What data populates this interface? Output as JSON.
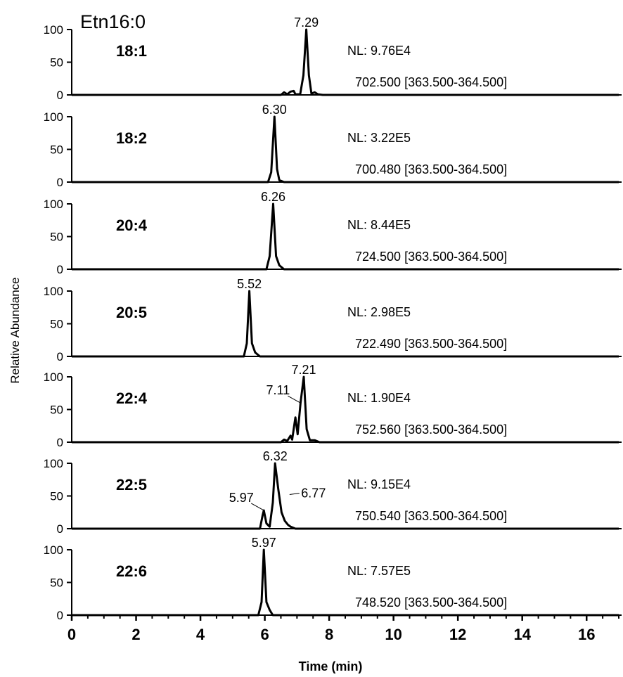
{
  "chart_data": {
    "type": "line",
    "title": "Etn16:0",
    "xlabel": "Time (min)",
    "ylabel": "Relative Abundance",
    "xlim": [
      0,
      17
    ],
    "ylim": [
      0,
      100
    ],
    "x_ticks": [
      "0",
      "2",
      "4",
      "6",
      "8",
      "10",
      "12",
      "14",
      "16"
    ],
    "y_ticks": [
      "0",
      "50",
      "100"
    ],
    "panels": [
      {
        "species": "18:1",
        "nl": "NL: 9.76E4",
        "mz": "702.500 [363.500-364.500]",
        "peaks": [
          {
            "rt": 7.29,
            "label": "7.29"
          }
        ],
        "trace": [
          [
            0,
            0
          ],
          [
            6.5,
            0
          ],
          [
            6.6,
            4
          ],
          [
            6.7,
            1
          ],
          [
            6.8,
            5
          ],
          [
            6.9,
            6
          ],
          [
            6.95,
            1
          ],
          [
            7.1,
            1
          ],
          [
            7.2,
            30
          ],
          [
            7.29,
            100
          ],
          [
            7.37,
            30
          ],
          [
            7.45,
            2
          ],
          [
            7.55,
            4
          ],
          [
            7.65,
            1
          ],
          [
            7.8,
            0
          ],
          [
            17,
            0
          ]
        ]
      },
      {
        "species": "18:2",
        "nl": "NL: 3.22E5",
        "mz": "700.480 [363.500-364.500]",
        "peaks": [
          {
            "rt": 6.3,
            "label": "6.30"
          }
        ],
        "trace": [
          [
            0,
            0
          ],
          [
            6.1,
            0
          ],
          [
            6.2,
            15
          ],
          [
            6.3,
            100
          ],
          [
            6.38,
            20
          ],
          [
            6.45,
            3
          ],
          [
            6.6,
            0
          ],
          [
            17,
            0
          ]
        ]
      },
      {
        "species": "20:4",
        "nl": "NL: 8.44E5",
        "mz": "724.500 [363.500-364.500]",
        "peaks": [
          {
            "rt": 6.26,
            "label": "6.26"
          }
        ],
        "trace": [
          [
            0,
            0
          ],
          [
            6.05,
            0
          ],
          [
            6.15,
            20
          ],
          [
            6.26,
            100
          ],
          [
            6.35,
            20
          ],
          [
            6.45,
            6
          ],
          [
            6.6,
            0
          ],
          [
            17,
            0
          ]
        ]
      },
      {
        "species": "20:5",
        "nl": "NL: 2.98E5",
        "mz": "722.490 [363.500-364.500]",
        "peaks": [
          {
            "rt": 5.52,
            "label": "5.52"
          }
        ],
        "trace": [
          [
            0,
            0
          ],
          [
            5.35,
            0
          ],
          [
            5.44,
            20
          ],
          [
            5.52,
            100
          ],
          [
            5.6,
            20
          ],
          [
            5.7,
            6
          ],
          [
            5.85,
            0
          ],
          [
            17,
            0
          ]
        ]
      },
      {
        "species": "22:4",
        "nl": "NL: 1.90E4",
        "mz": "752.560 [363.500-364.500]",
        "peaks": [
          {
            "rt": 7.21,
            "label": "7.21"
          },
          {
            "rt": 7.11,
            "label": "7.11"
          }
        ],
        "trace": [
          [
            0,
            0
          ],
          [
            6.5,
            0
          ],
          [
            6.6,
            4
          ],
          [
            6.7,
            2
          ],
          [
            6.8,
            10
          ],
          [
            6.85,
            4
          ],
          [
            6.95,
            38
          ],
          [
            7.02,
            12
          ],
          [
            7.11,
            60
          ],
          [
            7.21,
            100
          ],
          [
            7.3,
            20
          ],
          [
            7.4,
            3
          ],
          [
            7.55,
            3
          ],
          [
            7.7,
            0
          ],
          [
            17,
            0
          ]
        ]
      },
      {
        "species": "22:5",
        "nl": "NL: 9.15E4",
        "mz": "750.540 [363.500-364.500]",
        "peaks": [
          {
            "rt": 6.32,
            "label": "6.32"
          },
          {
            "rt": 5.97,
            "label": "5.97"
          },
          {
            "rt": 6.77,
            "label": "6.77"
          }
        ],
        "trace": [
          [
            0,
            0
          ],
          [
            5.85,
            0
          ],
          [
            5.93,
            20
          ],
          [
            5.97,
            28
          ],
          [
            6.05,
            8
          ],
          [
            6.15,
            3
          ],
          [
            6.25,
            40
          ],
          [
            6.32,
            100
          ],
          [
            6.42,
            60
          ],
          [
            6.52,
            25
          ],
          [
            6.62,
            12
          ],
          [
            6.72,
            6
          ],
          [
            6.8,
            3
          ],
          [
            6.95,
            0
          ],
          [
            17,
            0
          ]
        ]
      },
      {
        "species": "22:6",
        "nl": "NL: 7.57E5",
        "mz": "748.520 [363.500-364.500]",
        "peaks": [
          {
            "rt": 5.97,
            "label": "5.97"
          }
        ],
        "trace": [
          [
            0,
            0
          ],
          [
            5.8,
            0
          ],
          [
            5.9,
            20
          ],
          [
            5.97,
            100
          ],
          [
            6.05,
            20
          ],
          [
            6.15,
            8
          ],
          [
            6.25,
            0
          ],
          [
            17,
            0
          ]
        ]
      }
    ]
  }
}
